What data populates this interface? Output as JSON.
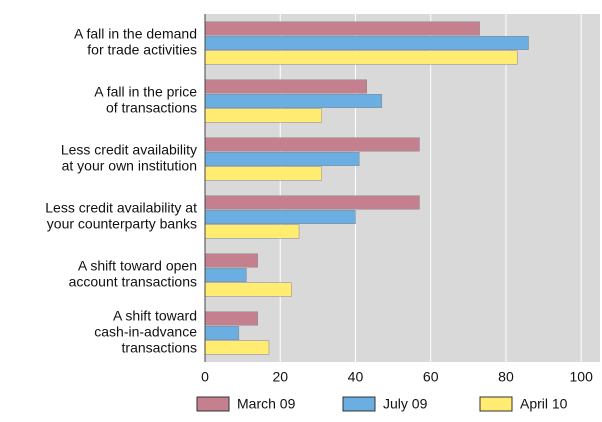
{
  "chart_data": {
    "type": "hbar",
    "categories": [
      [
        "A fall in the demand",
        "for trade activities"
      ],
      [
        "A fall in the price",
        "of transactions"
      ],
      [
        "Less credit availability",
        "at your own institution"
      ],
      [
        "Less credit availability at",
        "your counterparty banks"
      ],
      [
        "A shift toward open",
        "account transactions"
      ],
      [
        "A shift toward",
        "cash-in-advance",
        "transactions"
      ]
    ],
    "series": [
      {
        "name": "March 09",
        "color": "#c4808f",
        "values": [
          73,
          43,
          57,
          57,
          14,
          14
        ]
      },
      {
        "name": "July 09",
        "color": "#6aaee2",
        "values": [
          86,
          47,
          41,
          40,
          11,
          9
        ]
      },
      {
        "name": "April 10",
        "color": "#ffec70",
        "values": [
          83,
          31,
          31,
          25,
          23,
          17
        ]
      }
    ],
    "xlim": [
      0,
      105
    ],
    "xticks": [
      0,
      20,
      40,
      60,
      80,
      100
    ],
    "grid": true,
    "legend": "bottom"
  }
}
